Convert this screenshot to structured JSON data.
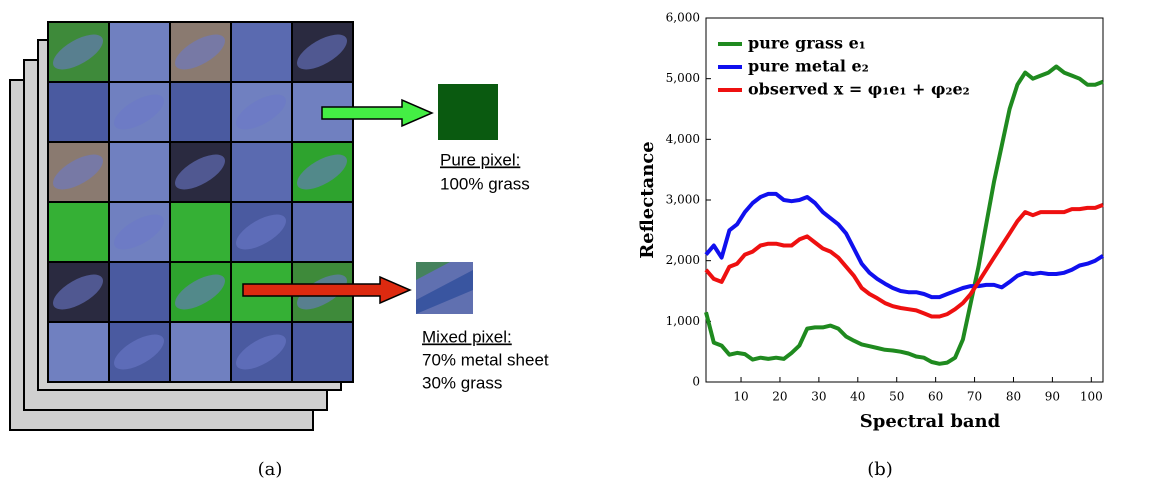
{
  "diagram": {
    "pure_label": "Pure pixel:",
    "pure_desc": "100% grass",
    "mixed_label": "Mixed pixel:",
    "mixed_lines": [
      "70% metal sheet",
      "30% grass"
    ],
    "caption": "(a)"
  },
  "chart_data": {
    "type": "line",
    "caption": "(b)",
    "xlabel": "Spectral band",
    "ylabel": "Reflectance",
    "x": [
      1,
      3,
      5,
      7,
      9,
      11,
      13,
      15,
      17,
      19,
      21,
      23,
      25,
      27,
      29,
      31,
      33,
      35,
      37,
      39,
      41,
      43,
      45,
      47,
      49,
      51,
      53,
      55,
      57,
      59,
      61,
      63,
      65,
      67,
      69,
      71,
      73,
      75,
      77,
      79,
      81,
      83,
      85,
      87,
      89,
      91,
      93,
      95,
      97,
      99,
      101,
      103
    ],
    "series": [
      {
        "name": "pure grass e₁",
        "color": "#1f8a1f",
        "values": [
          1150,
          650,
          600,
          450,
          480,
          460,
          370,
          400,
          380,
          400,
          380,
          480,
          600,
          880,
          900,
          900,
          930,
          880,
          750,
          680,
          620,
          590,
          560,
          530,
          520,
          500,
          470,
          420,
          400,
          330,
          300,
          320,
          400,
          700,
          1300,
          1900,
          2600,
          3300,
          3900,
          4500,
          4900,
          5100,
          5000,
          5050,
          5100,
          5200,
          5100,
          5050,
          5000,
          4900,
          4900,
          4950
        ]
      },
      {
        "name": "pure metal e₂",
        "color": "#1010ee",
        "values": [
          2100,
          2250,
          2050,
          2500,
          2600,
          2800,
          2950,
          3050,
          3100,
          3100,
          3000,
          2980,
          3000,
          3050,
          2950,
          2800,
          2700,
          2600,
          2450,
          2200,
          1950,
          1800,
          1700,
          1620,
          1550,
          1500,
          1480,
          1480,
          1450,
          1400,
          1400,
          1450,
          1500,
          1550,
          1580,
          1580,
          1600,
          1600,
          1560,
          1650,
          1750,
          1800,
          1780,
          1800,
          1780,
          1780,
          1800,
          1850,
          1920,
          1950,
          2000,
          2080
        ]
      },
      {
        "name": "observed x = φ₁e₁ + φ₂e₂",
        "color": "#ee1010",
        "values": [
          1850,
          1700,
          1650,
          1900,
          1950,
          2100,
          2150,
          2250,
          2280,
          2280,
          2250,
          2250,
          2350,
          2400,
          2300,
          2200,
          2150,
          2050,
          1900,
          1750,
          1550,
          1450,
          1380,
          1300,
          1250,
          1220,
          1200,
          1180,
          1130,
          1080,
          1080,
          1120,
          1200,
          1300,
          1450,
          1650,
          1850,
          2050,
          2250,
          2450,
          2650,
          2800,
          2750,
          2800,
          2800,
          2800,
          2800,
          2850,
          2850,
          2870,
          2870,
          2920
        ]
      }
    ],
    "xlim": [
      1,
      103
    ],
    "ylim": [
      0,
      6000
    ],
    "xticks": [
      10,
      20,
      30,
      40,
      50,
      60,
      70,
      80,
      90,
      100
    ],
    "yticks": [
      0,
      {
        "value": 1000,
        "label": "1,000"
      },
      {
        "value": 2000,
        "label": "2,000"
      },
      {
        "value": 3000,
        "label": "3,000"
      },
      {
        "value": 4000,
        "label": "4,000"
      },
      {
        "value": 5000,
        "label": "5,000"
      },
      {
        "value": 6000,
        "label": "6,000"
      }
    ],
    "legend": "upper left"
  }
}
